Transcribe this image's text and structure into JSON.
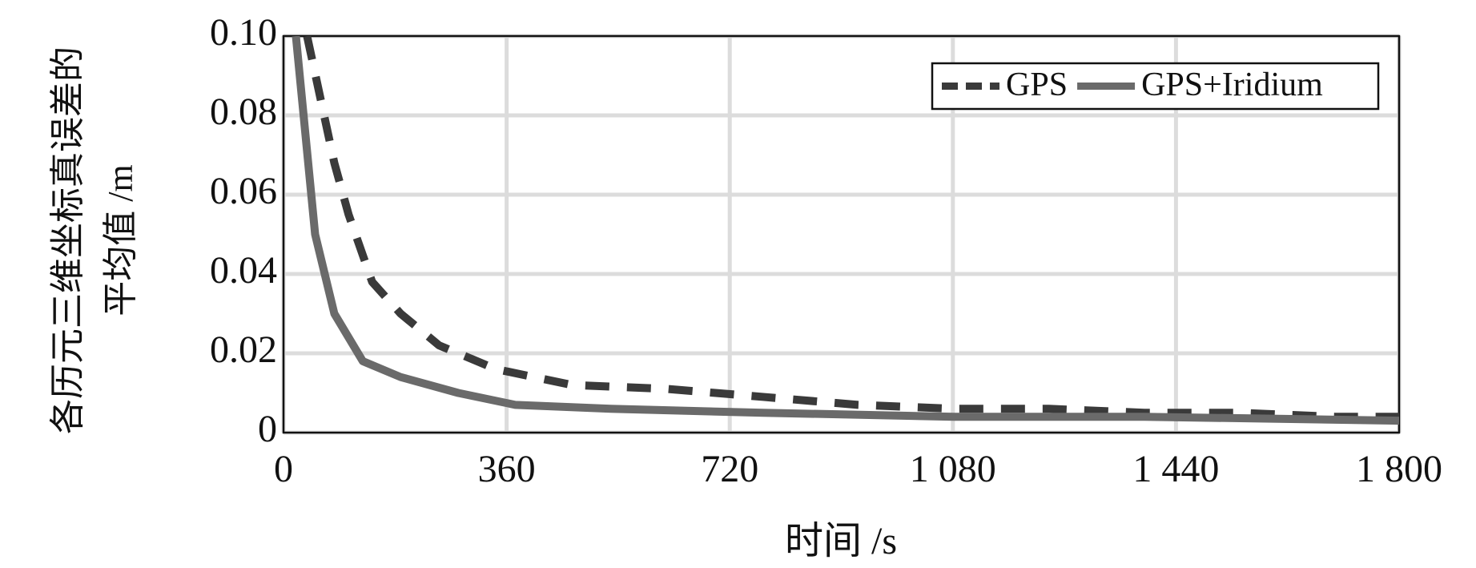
{
  "chart_data": {
    "type": "line",
    "xlabel": "时间 /s",
    "ylabel": "各历元三维坐标真误差的平均值 /m",
    "xlim": [
      0,
      1800
    ],
    "xticks": [
      0,
      360,
      720,
      {
        "value": 1080,
        "label": "1 080"
      },
      {
        "value": 1440,
        "label": "1 440"
      },
      {
        "value": 1800,
        "label": "1 800"
      }
    ],
    "ylim": [
      0,
      0.1
    ],
    "yticks": [
      0,
      0.02,
      0.04,
      0.06,
      0.08,
      {
        "value": 0.1,
        "label": "0.10"
      }
    ],
    "grid": true,
    "legend": "upper right",
    "series": [
      {
        "name": "GPS",
        "color": "#3a3a3a",
        "dash": true,
        "x": [
          38,
          82,
          105,
          143,
          189,
          251,
          343,
          466,
          620,
          774,
          927,
          1082,
          1235,
          1389,
          1543,
          1697,
          1800
        ],
        "values": [
          0.1,
          0.068,
          0.055,
          0.038,
          0.03,
          0.022,
          0.016,
          0.012,
          0.011,
          0.009,
          0.007,
          0.006,
          0.006,
          0.005,
          0.005,
          0.004,
          0.004
        ]
      },
      {
        "name": "GPS+Iridium",
        "color": "#6a6a6a",
        "dash": false,
        "x": [
          20,
          51,
          82,
          128,
          189,
          282,
          374,
          528,
          774,
          1082,
          1389,
          1800
        ],
        "values": [
          0.1,
          0.05,
          0.03,
          0.018,
          0.014,
          0.01,
          0.007,
          0.006,
          0.005,
          0.004,
          0.004,
          0.003
        ]
      }
    ]
  }
}
